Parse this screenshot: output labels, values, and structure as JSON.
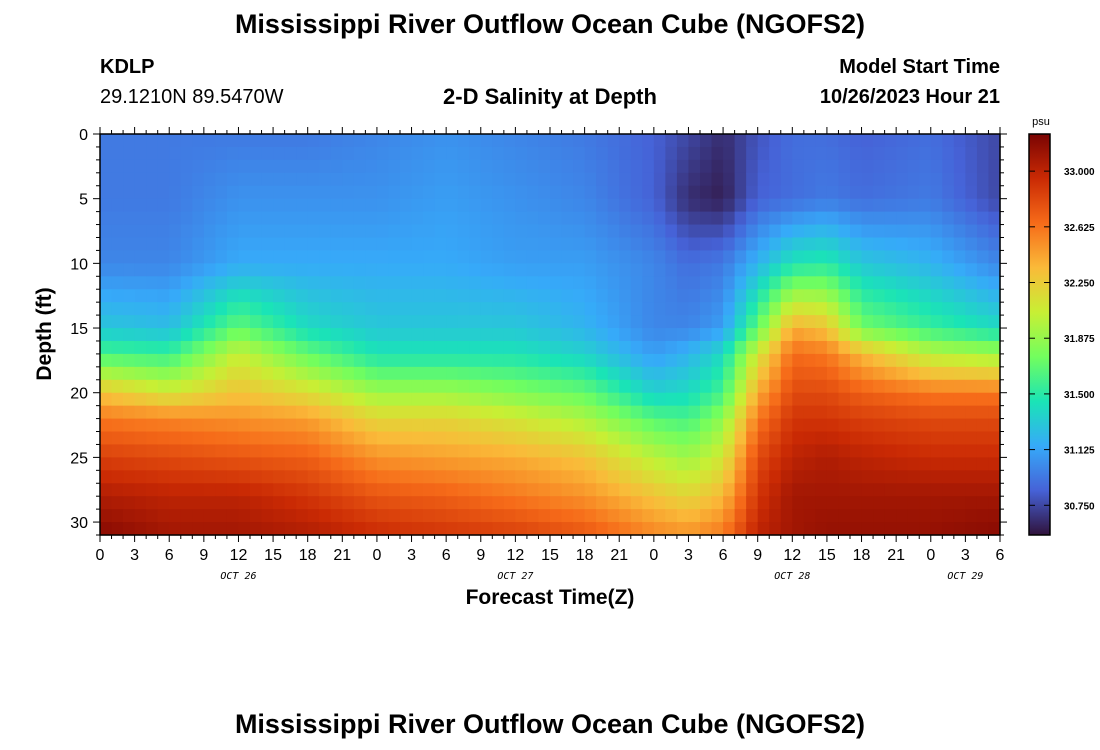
{
  "header": {
    "title": "Mississippi River Outflow Ocean Cube (NGOFS2)",
    "station_id": "KDLP",
    "station_coords": "29.1210N  89.5470W",
    "plot_title": "2-D Salinity at Depth",
    "model_start_label": "Model Start Time",
    "model_start_value": "10/26/2023 Hour 21"
  },
  "footer": {
    "title": "Mississippi River Outflow Ocean Cube (NGOFS2)"
  },
  "colors": {
    "colormap": [
      "#30123b",
      "#4662d7",
      "#36aaf9",
      "#1ae4b6",
      "#72fe5e",
      "#c8ef34",
      "#faba39",
      "#f66b19",
      "#ca2a04",
      "#7a0403"
    ]
  },
  "chart_data": {
    "type": "heatmap",
    "title": "2-D Salinity at Depth",
    "xlabel": "Forecast Time(Z)",
    "ylabel": "Depth (ft)",
    "x_ticks": [
      "0",
      "3",
      "6",
      "9",
      "12",
      "15",
      "18",
      "21",
      "0",
      "3",
      "6",
      "9",
      "12",
      "15",
      "18",
      "21",
      "0",
      "3",
      "6",
      "9",
      "12",
      "15",
      "18",
      "21",
      "0",
      "3",
      "6"
    ],
    "date_labels": [
      {
        "label": "OCT 26",
        "hour": 12
      },
      {
        "label": "OCT 27",
        "hour": 36
      },
      {
        "label": "OCT 28",
        "hour": 60
      },
      {
        "label": "OCT 29",
        "hour": 75
      }
    ],
    "x_range_hours": [
      0,
      78
    ],
    "y_ticks": [
      "0",
      "5",
      "10",
      "15",
      "20",
      "25",
      "30"
    ],
    "y_range": [
      0,
      31
    ],
    "y_inverted": true,
    "colorbar": {
      "unit": "psu",
      "ticks": [
        "33.000",
        "32.625",
        "32.250",
        "31.875",
        "31.500",
        "31.125",
        "30.750"
      ],
      "range": [
        30.55,
        33.25
      ]
    },
    "profile_hours": [
      0,
      6,
      12,
      18,
      24,
      30,
      36,
      42,
      48,
      51,
      54,
      57,
      60,
      63,
      66,
      72,
      78
    ],
    "profile_depths": [
      0,
      5,
      10,
      15,
      17,
      20,
      22,
      25,
      28,
      31
    ],
    "profiles": [
      [
        30.95,
        30.95,
        31.0,
        31.3,
        31.6,
        32.3,
        32.6,
        32.85,
        33.05,
        33.2
      ],
      [
        30.95,
        30.95,
        31.0,
        31.25,
        31.55,
        32.1,
        32.55,
        32.8,
        33.0,
        33.1
      ],
      [
        30.95,
        31.05,
        31.15,
        31.7,
        32.05,
        32.3,
        32.5,
        32.75,
        33.0,
        33.1
      ],
      [
        30.95,
        31.05,
        31.15,
        31.4,
        31.7,
        32.15,
        32.45,
        32.7,
        32.9,
        33.05
      ],
      [
        31.0,
        31.05,
        31.15,
        31.3,
        31.45,
        31.9,
        32.2,
        32.5,
        32.75,
        32.95
      ],
      [
        31.05,
        31.1,
        31.15,
        31.3,
        31.45,
        31.9,
        32.2,
        32.45,
        32.7,
        32.9
      ],
      [
        31.0,
        31.05,
        31.1,
        31.3,
        31.45,
        31.8,
        32.1,
        32.4,
        32.6,
        32.85
      ],
      [
        30.95,
        31.0,
        31.1,
        31.2,
        31.35,
        31.7,
        31.95,
        32.3,
        32.5,
        32.75
      ],
      [
        30.85,
        30.85,
        31.0,
        31.0,
        31.1,
        31.35,
        31.65,
        32.0,
        32.3,
        32.55
      ],
      [
        30.75,
        30.65,
        30.9,
        31.0,
        31.2,
        31.4,
        31.6,
        31.9,
        32.2,
        32.5
      ],
      [
        30.65,
        30.6,
        30.95,
        31.1,
        31.4,
        31.6,
        31.85,
        32.1,
        32.35,
        32.6
      ],
      [
        30.8,
        30.85,
        31.2,
        31.7,
        32.1,
        32.4,
        32.6,
        32.8,
        32.9,
        33.0
      ],
      [
        30.9,
        30.9,
        31.45,
        32.4,
        32.65,
        32.8,
        32.9,
        33.0,
        33.1,
        33.1
      ],
      [
        30.9,
        30.95,
        31.5,
        32.3,
        32.6,
        32.8,
        32.9,
        33.05,
        33.1,
        33.15
      ],
      [
        30.85,
        30.9,
        31.3,
        31.75,
        32.35,
        32.7,
        32.85,
        33.0,
        33.1,
        33.15
      ],
      [
        30.9,
        30.95,
        31.2,
        31.55,
        32.0,
        32.6,
        32.8,
        32.95,
        33.1,
        33.15
      ],
      [
        30.75,
        30.75,
        31.0,
        31.4,
        31.9,
        32.6,
        32.8,
        32.95,
        33.1,
        33.2
      ]
    ]
  }
}
